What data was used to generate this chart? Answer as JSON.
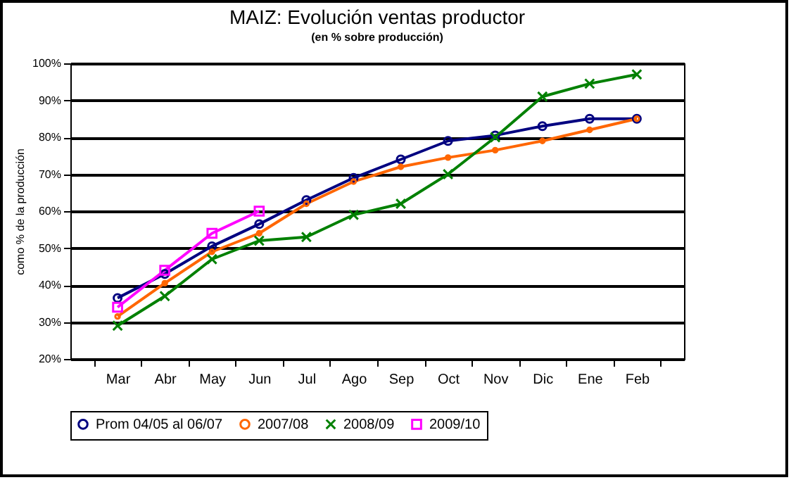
{
  "chart_data": {
    "type": "line",
    "title": "MAIZ: Evolución ventas productor",
    "subtitle": "(en % sobre producción)",
    "ylabel": "como % de la producción",
    "categories": [
      "Mar",
      "Abr",
      "May",
      "Jun",
      "Jul",
      "Ago",
      "Sep",
      "Oct",
      "Nov",
      "Dic",
      "Ene",
      "Feb"
    ],
    "series": [
      {
        "name": "Prom 04/05 al 06/07",
        "color": "#000080",
        "marker": "circle",
        "values": [
          36.5,
          43,
          50.5,
          56.5,
          63,
          69,
          74,
          79,
          80.5,
          83,
          85,
          85
        ]
      },
      {
        "name": "2007/08",
        "color": "#ff6600",
        "marker": "circle",
        "values": [
          31.5,
          40.5,
          49,
          54,
          62,
          68,
          72,
          74.5,
          76.5,
          79,
          82,
          85
        ]
      },
      {
        "name": "2008/09",
        "color": "#008000",
        "marker": "cross",
        "values": [
          29,
          37,
          47,
          52,
          53,
          59,
          62,
          70,
          80,
          91,
          94.5,
          97
        ]
      },
      {
        "name": "2009/10",
        "color": "#ff00ff",
        "marker": "square",
        "values": [
          34,
          44,
          54,
          60,
          null,
          null,
          null,
          null,
          null,
          null,
          null,
          null
        ]
      }
    ],
    "ylim": [
      20,
      100
    ],
    "yticks": [
      {
        "value": 20,
        "label": "20%"
      },
      {
        "value": 30,
        "label": "30%"
      },
      {
        "value": 40,
        "label": "40%"
      },
      {
        "value": 50,
        "label": "50%"
      },
      {
        "value": 60,
        "label": "60%"
      },
      {
        "value": 70,
        "label": "70%"
      },
      {
        "value": 80,
        "label": "80%"
      },
      {
        "value": 90,
        "label": "90%"
      },
      {
        "value": 100,
        "label": "100%"
      }
    ],
    "grid": "y",
    "legend": "bottom",
    "line_style": "solid"
  }
}
